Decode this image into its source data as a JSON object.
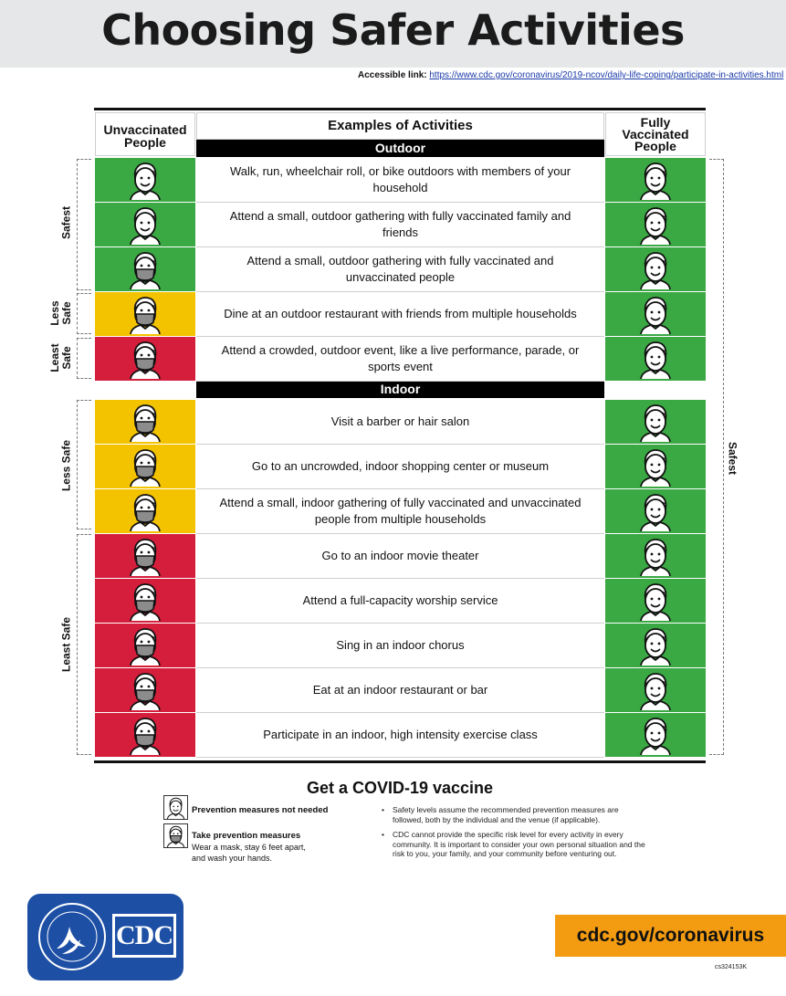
{
  "title": "Choosing Safer Activities",
  "accessible": {
    "label": "Accessible link:",
    "url": "https://www.cdc.gov/coronavirus/2019-ncov/daily-life-coping/participate-in-activities.html"
  },
  "headers": {
    "left": "Unvaccinated People",
    "middle": "Examples of Activities",
    "right": "Fully Vaccinated People"
  },
  "sections": {
    "outdoor": "Outdoor",
    "indoor": "Indoor"
  },
  "levels": {
    "safest": "Safest",
    "less_safe_a": "Less",
    "less_safe_b": "Safe",
    "least_safe_a": "Least",
    "least_safe_b": "Safe",
    "less_safe": "Less Safe",
    "least_safe": "Least Safe",
    "vaccinated_safest": "Safest"
  },
  "colors": {
    "safest": "#3aa843",
    "less_safe": "#f4c300",
    "least_safe": "#d41e3c"
  },
  "outdoor_rows": [
    {
      "text": "Walk, run, wheelchair roll, or bike outdoors with members of your household",
      "unvaccinated": "green",
      "mask": false
    },
    {
      "text": "Attend a small, outdoor gathering with fully vaccinated family and friends",
      "unvaccinated": "green",
      "mask": false
    },
    {
      "text": "Attend a small, outdoor gathering with fully vaccinated and unvaccinated people",
      "unvaccinated": "green",
      "mask": true
    },
    {
      "text": "Dine at an outdoor restaurant with friends from multiple households",
      "unvaccinated": "yellow",
      "mask": true
    },
    {
      "text": "Attend a crowded, outdoor event, like a live performance, parade, or sports event",
      "unvaccinated": "red",
      "mask": true
    }
  ],
  "indoor_rows": [
    {
      "text": "Visit a barber or hair salon",
      "unvaccinated": "yellow",
      "mask": true
    },
    {
      "text": "Go to an uncrowded, indoor shopping center or museum",
      "unvaccinated": "yellow",
      "mask": true
    },
    {
      "text": "Attend a small, indoor gathering of fully vaccinated and unvaccinated people from multiple households",
      "unvaccinated": "yellow",
      "mask": true
    },
    {
      "text": "Go to an indoor movie theater",
      "unvaccinated": "red",
      "mask": true
    },
    {
      "text": "Attend a full-capacity worship service",
      "unvaccinated": "red",
      "mask": true
    },
    {
      "text": "Sing in an indoor chorus",
      "unvaccinated": "red",
      "mask": true
    },
    {
      "text": "Eat at an indoor restaurant or bar",
      "unvaccinated": "red",
      "mask": true
    },
    {
      "text": "Participate in an indoor, high intensity exercise class",
      "unvaccinated": "red",
      "mask": true
    }
  ],
  "vaccine_heading": "Get a COVID-19 vaccine",
  "legend": {
    "no_measures": "Prevention measures not needed",
    "take_measures": "Take prevention measures",
    "take_measures_detail": "Wear a mask, stay 6 feet apart, and wash your hands."
  },
  "notes": [
    "Safety levels assume the recommended prevention measures are followed, both by the individual and the venue (if applicable).",
    "CDC cannot provide the specific risk level for every activity in every community. It is important to consider your own personal situation and the risk to you, your family, and your community before venturing out."
  ],
  "footer": {
    "cdc_logo": "CDC",
    "website": "cdc.gov/coronavirus",
    "code": "cs324153K"
  }
}
